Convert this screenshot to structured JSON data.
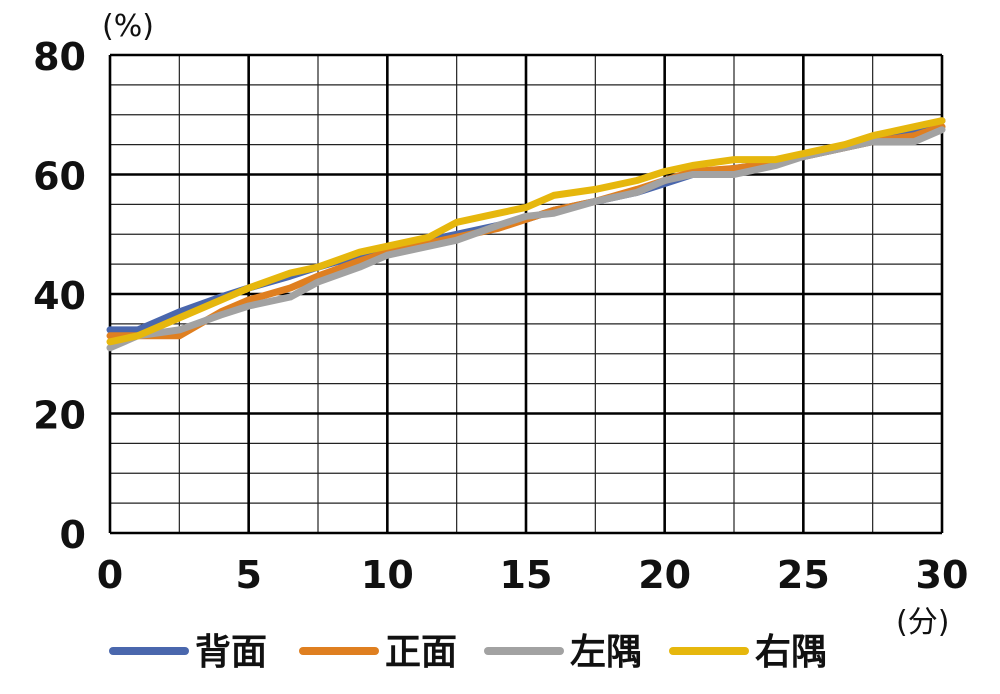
{
  "chart_data": {
    "type": "line",
    "y_unit": "(%)",
    "x_unit": "(分)",
    "xlim": [
      0,
      30
    ],
    "ylim": [
      0,
      80
    ],
    "x_ticks": [
      0,
      5,
      10,
      15,
      20,
      25,
      30
    ],
    "y_ticks": [
      0,
      20,
      40,
      60,
      80
    ],
    "x_minor_step": 2.5,
    "y_minor_step": 5,
    "grid": true,
    "legend_position": "bottom",
    "x": [
      0,
      1,
      2.5,
      4,
      5,
      6.5,
      7.5,
      9,
      10,
      11.5,
      12.5,
      14,
      15,
      16,
      17.5,
      19,
      20,
      21,
      22.5,
      24,
      25,
      26.5,
      27.5,
      29,
      30
    ],
    "series": [
      {
        "name": "背面",
        "color": "#4a67ad",
        "values": [
          34,
          34,
          37,
          39.5,
          41,
          43,
          44.5,
          46.5,
          47.5,
          49,
          50,
          51.5,
          52.5,
          54,
          55.5,
          57,
          58.5,
          60,
          61,
          62,
          63,
          64.5,
          65.5,
          67,
          69
        ]
      },
      {
        "name": "正面",
        "color": "#df7f20",
        "values": [
          33,
          33,
          33,
          37,
          39,
          41,
          43,
          45.5,
          47,
          48.5,
          49.5,
          51,
          52.5,
          54,
          55.5,
          57.5,
          59,
          60.5,
          61,
          62,
          63,
          64.5,
          65.5,
          66.5,
          68
        ]
      },
      {
        "name": "左隅",
        "color": "#a2a2a2",
        "values": [
          31,
          33,
          34,
          36.5,
          38,
          39.5,
          42,
          44.5,
          46.5,
          48,
          49,
          51.5,
          53,
          53.5,
          55.5,
          57,
          59,
          60,
          60,
          61.5,
          63,
          64.5,
          65.5,
          65.5,
          67.5
        ]
      },
      {
        "name": "右隅",
        "color": "#e6b70d",
        "values": [
          32,
          33,
          36,
          39,
          41,
          43.5,
          44.5,
          47,
          48,
          49.5,
          52,
          53.5,
          54.5,
          56.5,
          57.5,
          59,
          60.5,
          61.5,
          62.5,
          62.5,
          63.5,
          65,
          66.5,
          68,
          69
        ]
      }
    ]
  }
}
